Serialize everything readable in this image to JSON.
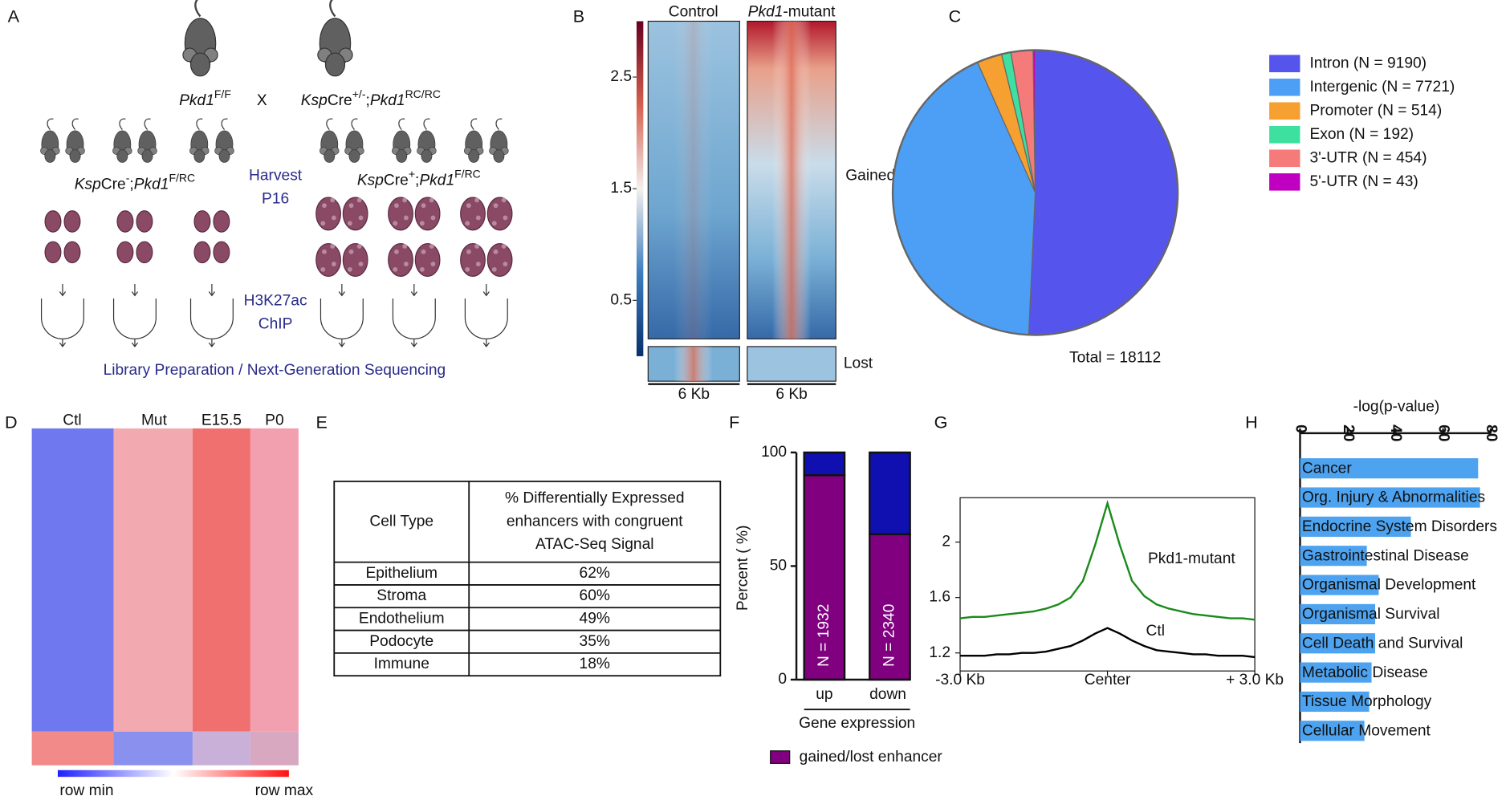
{
  "letters": [
    "A",
    "B",
    "C",
    "D",
    "E",
    "F",
    "G",
    "H"
  ],
  "diagram_a": {
    "parent1": [
      "Pkd1",
      "F/F"
    ],
    "cross": "X",
    "parent2": [
      "Ksp",
      "Cre",
      "+/-",
      ";",
      "Pkd1",
      "RC/RC"
    ],
    "group1": [
      "Ksp",
      "Cre",
      "-",
      ";",
      "Pkd1",
      "F/RC"
    ],
    "group2": [
      "Ksp",
      "Cre",
      "+",
      ";",
      "Pkd1",
      "F/RC"
    ],
    "step1": [
      "Harvest",
      "P16"
    ],
    "step2": [
      "H3K27ac",
      "ChIP"
    ],
    "footer": "Library Preparation / Next-Generation Sequencing"
  },
  "heatmap_b": {
    "colorbar_lim": [
      0,
      3
    ],
    "colorbar_ticks": [
      2.5,
      1.5,
      0.5
    ],
    "columns": [
      [
        "Control"
      ],
      [
        "Pkd1",
        "-mutant"
      ]
    ],
    "rows": [
      "Gained",
      "Lost"
    ],
    "x_labels": [
      "6 Kb",
      "6 Kb"
    ]
  },
  "heatmap_d": {
    "columns": [
      "Ctl",
      "Mut",
      "E15.5",
      "P0"
    ],
    "scale": [
      "row min",
      "row max"
    ]
  },
  "table_e": {
    "header": [
      "Cell Type",
      [
        "% Differentially Expressed",
        "enhancers with congruent",
        "ATAC-Seq Signal"
      ]
    ],
    "rows": [
      [
        "Epithelium",
        "62%"
      ],
      [
        "Stroma",
        "60%"
      ],
      [
        "Endothelium",
        "49%"
      ],
      [
        "Podocyte",
        "35%"
      ],
      [
        "Immune",
        "18%"
      ]
    ]
  },
  "chart_data": [
    {
      "type": "pie",
      "categories": [
        "Intron  (N = 9190)",
        "Intergenic (N = 7721)",
        "Promoter (N = 514)",
        "Exon (N = 192)",
        "3'-UTR  (N = 454)",
        "5'-UTR (N = 43)"
      ],
      "values": [
        9190,
        7721,
        514,
        192,
        454,
        43
      ],
      "colors": [
        "#5555ee",
        "#4d9ff5",
        "#f5a030",
        "#3ee0a0",
        "#f57a7a",
        "#c000c0"
      ],
      "annotation": "Total = 18112",
      "legend": "right"
    },
    {
      "type": "stacked_bar",
      "categories": [
        "up",
        "down"
      ],
      "series": [
        {
          "name": "gained/lost enhancer",
          "color": "#800080",
          "values": [
            90,
            64
          ]
        },
        {
          "color": "#1010b0",
          "values": [
            10,
            36
          ]
        }
      ],
      "annotations": [
        "N = 1932",
        "N = 2340"
      ],
      "ylabel": "Percent ( %)",
      "xlabel": "Gene expression",
      "ylim": [
        0,
        100
      ],
      "yticks": [
        0,
        50,
        100
      ],
      "legend": "bottom"
    },
    {
      "type": "line",
      "x": [
        -3,
        -2.75,
        -2.5,
        -2.25,
        -2,
        -1.75,
        -1.5,
        -1.25,
        -1,
        -0.75,
        -0.5,
        -0.25,
        0,
        0.25,
        0.5,
        0.75,
        1,
        1.25,
        1.5,
        1.75,
        2,
        2.25,
        2.5,
        2.75,
        3
      ],
      "series": [
        {
          "name": "Pkd1-mutant",
          "color": "#1a8a1a",
          "values": [
            1.45,
            1.46,
            1.46,
            1.47,
            1.48,
            1.49,
            1.5,
            1.52,
            1.55,
            1.6,
            1.72,
            1.98,
            2.28,
            1.98,
            1.72,
            1.61,
            1.55,
            1.52,
            1.5,
            1.48,
            1.47,
            1.46,
            1.45,
            1.45,
            1.44
          ]
        },
        {
          "name": "Ctl",
          "color": "#000000",
          "values": [
            1.18,
            1.18,
            1.18,
            1.19,
            1.19,
            1.2,
            1.2,
            1.21,
            1.23,
            1.25,
            1.29,
            1.34,
            1.38,
            1.34,
            1.29,
            1.25,
            1.22,
            1.21,
            1.2,
            1.19,
            1.19,
            1.18,
            1.18,
            1.18,
            1.17
          ]
        }
      ],
      "xlim": [
        -3,
        3
      ],
      "xticks": [
        {
          "value": -3,
          "label": "-3.0 Kb"
        },
        {
          "value": 0,
          "label": "Center"
        },
        {
          "value": 3,
          "label": "+ 3.0 Kb"
        }
      ],
      "ylim": [
        1.07,
        2.32
      ],
      "yticks": [
        1.2,
        1.6,
        2
      ]
    },
    {
      "type": "hbar",
      "xlabel": "-log(p-value)",
      "categories": [
        "Cancer",
        "Org. Injury & Abnormalities",
        "Endocrine System Disorders",
        "Gastrointestinal Disease",
        "Organismal Development",
        "Organismal Survival",
        "Cell Death and Survival",
        "Metabolic Disease",
        "Tissue Morphology",
        "Cellular Movement"
      ],
      "values": [
        74.7,
        75.5,
        46.5,
        28,
        33,
        31.5,
        31.5,
        30,
        29,
        27
      ],
      "color": "#4da3f0",
      "xlim": [
        0,
        80
      ],
      "xticks": [
        0,
        20,
        40,
        60,
        80
      ]
    }
  ]
}
